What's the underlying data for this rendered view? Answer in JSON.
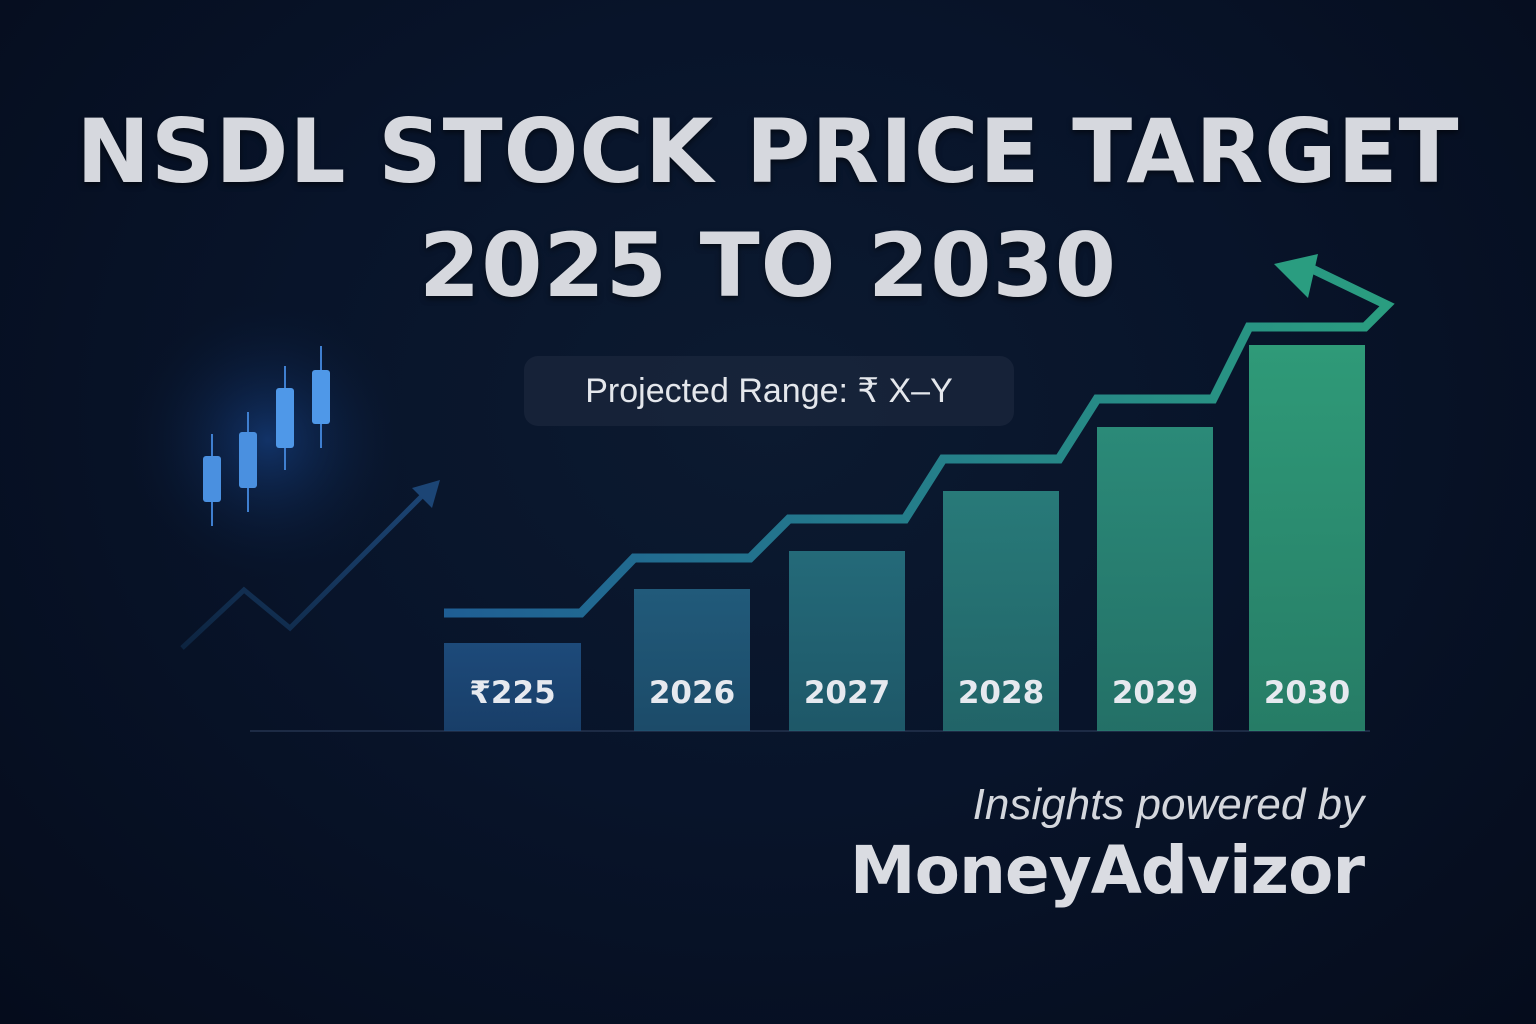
{
  "header": {
    "title_line1": "NSDL STOCK PRICE TARGET",
    "title_line2": "2025 TO 2030"
  },
  "badge": {
    "text": "Projected Range: ₹ X–Y"
  },
  "branding": {
    "tagline": "Insights powered by",
    "name": "MoneyAdvizor"
  },
  "chart_data": {
    "type": "bar",
    "title": "",
    "xlabel": "",
    "ylabel": "",
    "categories": [
      "₹225",
      "2026",
      "2027",
      "2028",
      "2029",
      "2030"
    ],
    "values": [
      88,
      142,
      180,
      240,
      304,
      386
    ],
    "ylim": [
      0,
      400
    ],
    "trend_line": {
      "values": [
        118,
        173,
        212,
        272,
        332,
        404
      ],
      "arrow": true
    },
    "grid": false,
    "legend": "none",
    "colors": {
      "bar_start": "#1d4a7a",
      "bar_end": "#2f9a78",
      "line_start": "#1f5e94",
      "line_end": "#2a9d80",
      "label": "#e6e9ef"
    }
  },
  "decor": {
    "icons": [
      "candlestick-icon",
      "trend-arrow-icon"
    ],
    "candle_color": "#4a90e0"
  }
}
